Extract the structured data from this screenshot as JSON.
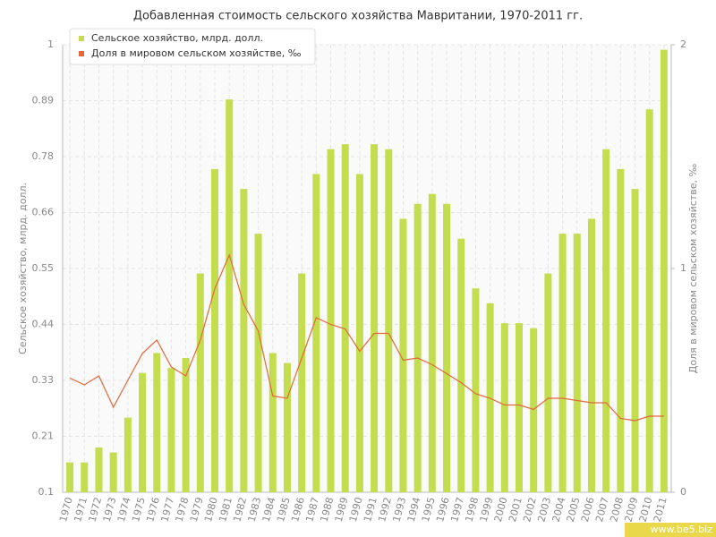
{
  "chart_data": {
    "type": "combo",
    "title": "Добавленная стоимость сельского хозяйства Мавритании, 1970-2011 гг.",
    "y_label": "Сельское хозяйство, млрд. долл.",
    "y2_label": "Доля в мировом сельском хозяйстве, ‰",
    "watermark": "www.be5.biz",
    "categories": [
      "1970",
      "1971",
      "1972",
      "1973",
      "1974",
      "1975",
      "1976",
      "1977",
      "1978",
      "1979",
      "1980",
      "1981",
      "1982",
      "1983",
      "1984",
      "1985",
      "1986",
      "1987",
      "1988",
      "1989",
      "1990",
      "1991",
      "1992",
      "1993",
      "1994",
      "1995",
      "1996",
      "1997",
      "1998",
      "1999",
      "2000",
      "2001",
      "2002",
      "2003",
      "2004",
      "2005",
      "2006",
      "2007",
      "2008",
      "2009",
      "2010",
      "2011"
    ],
    "series": [
      {
        "name": "Сельское хозяйство, млрд. долл.",
        "type": "bar",
        "color": "#c3dd4f",
        "values": [
          0.16,
          0.16,
          0.19,
          0.18,
          0.25,
          0.34,
          0.38,
          0.35,
          0.37,
          0.54,
          0.75,
          0.89,
          0.71,
          0.62,
          0.38,
          0.36,
          0.54,
          0.74,
          0.79,
          0.8,
          0.74,
          0.8,
          0.79,
          0.65,
          0.68,
          0.7,
          0.68,
          0.61,
          0.51,
          0.48,
          0.44,
          0.44,
          0.43,
          0.54,
          0.62,
          0.62,
          0.65,
          0.79,
          0.75,
          0.71,
          0.87,
          0.99
        ]
      },
      {
        "name": "Доля в мировом сельском хозяйстве, ‰",
        "type": "line",
        "axis": "y2",
        "color": "#e0673a",
        "values": [
          0.51,
          0.48,
          0.52,
          0.38,
          0.5,
          0.62,
          0.68,
          0.56,
          0.52,
          0.68,
          0.91,
          1.06,
          0.84,
          0.72,
          0.43,
          0.42,
          0.6,
          0.78,
          0.75,
          0.73,
          0.63,
          0.71,
          0.71,
          0.59,
          0.6,
          0.57,
          0.53,
          0.49,
          0.44,
          0.42,
          0.39,
          0.39,
          0.37,
          0.42,
          0.42,
          0.41,
          0.4,
          0.4,
          0.33,
          0.32,
          0.34,
          0.34
        ]
      }
    ],
    "ylim": [
      0.1,
      1
    ],
    "yticks": [
      0.1,
      {
        "value": 0.2125,
        "label": "0.21"
      },
      {
        "value": 0.325,
        "label": "0.33"
      },
      {
        "value": 0.4375,
        "label": "0.44"
      },
      0.55,
      {
        "value": 0.6625,
        "label": "0.66"
      },
      {
        "value": 0.775,
        "label": "0.78"
      },
      {
        "value": 0.8875,
        "label": "0.89"
      },
      1
    ],
    "y2lim": [
      0,
      2
    ],
    "y2ticks": [
      0,
      1,
      2
    ],
    "grid": true,
    "legend": "top-left"
  }
}
